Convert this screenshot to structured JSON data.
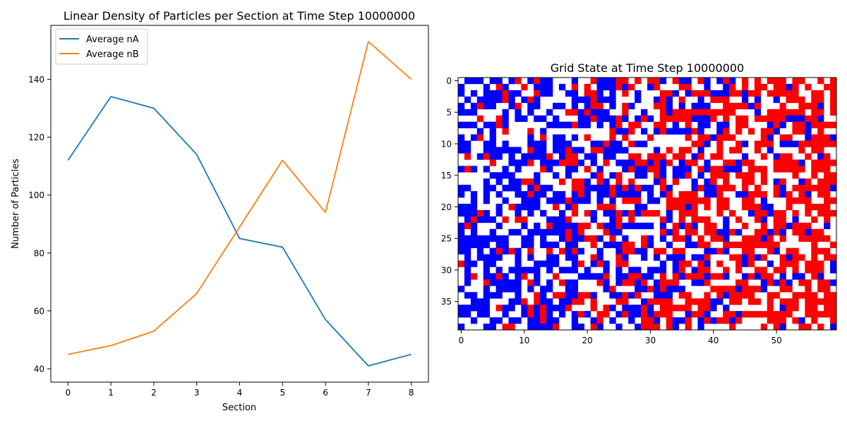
{
  "chart_data": [
    {
      "type": "line",
      "title": "Linear Density of Particles per Section at Time Step 10000000",
      "xlabel": "Section",
      "ylabel": "Number of Particles",
      "x": [
        0,
        1,
        2,
        3,
        4,
        5,
        6,
        7,
        8
      ],
      "xticks": [
        "0",
        "1",
        "2",
        "3",
        "4",
        "5",
        "6",
        "7",
        "8"
      ],
      "xlim": [
        -0.4,
        8.4
      ],
      "yticks": [
        "40",
        "60",
        "80",
        "100",
        "120",
        "140"
      ],
      "ylim": [
        35.4,
        158.6
      ],
      "grid": false,
      "legend_position": "upper left",
      "series": [
        {
          "name": "Average nA",
          "color": "#1f77b4",
          "values": [
            112,
            134,
            130,
            114,
            85,
            82,
            57,
            41,
            45
          ]
        },
        {
          "name": "Average nB",
          "color": "#ff7f0e",
          "values": [
            45,
            48,
            53,
            66,
            89,
            112,
            94,
            153,
            140
          ]
        }
      ]
    },
    {
      "type": "heatmap",
      "title": "Grid State at Time Step 10000000",
      "cols": 60,
      "rows": 40,
      "xticks": [
        "0",
        "10",
        "20",
        "30",
        "40",
        "50"
      ],
      "yticks": [
        "0",
        "5",
        "10",
        "15",
        "20",
        "25",
        "30",
        "35"
      ],
      "colors": {
        "empty": "#ffffff",
        "A": "#0000ff",
        "B": "#ff0000"
      },
      "grid": false,
      "cells_note": ""
    }
  ]
}
